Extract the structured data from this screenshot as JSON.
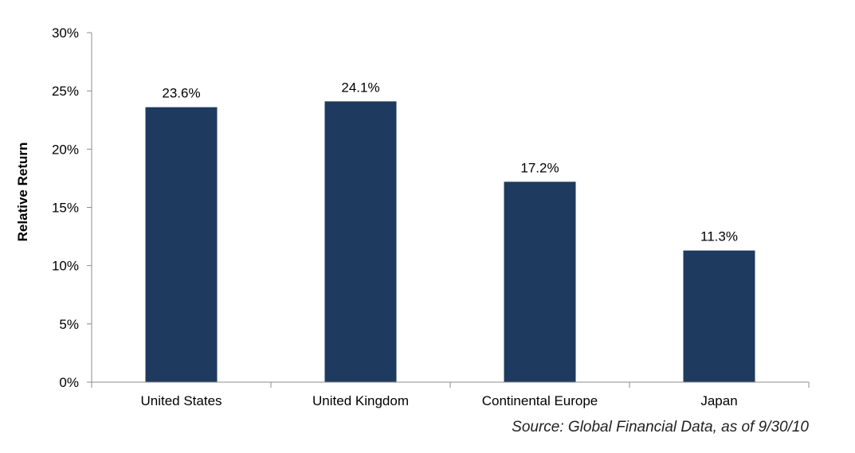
{
  "chart_data": {
    "type": "bar",
    "categories": [
      "United States",
      "United Kingdom",
      "Continental Europe",
      "Japan"
    ],
    "values": [
      23.6,
      24.1,
      17.2,
      11.3
    ],
    "data_labels": [
      "23.6%",
      "24.1%",
      "17.2%",
      "11.3%"
    ],
    "title": "",
    "xlabel": "",
    "ylabel": "Relative Return",
    "ylim": [
      0,
      30
    ],
    "yticks": [
      0,
      5,
      10,
      15,
      20,
      25,
      30
    ],
    "ytick_labels": [
      "0%",
      "5%",
      "10%",
      "15%",
      "20%",
      "25%",
      "30%"
    ],
    "grid": false,
    "legend": "none",
    "bar_color": "#1f3a5f",
    "axis_color": "#8c8c8c"
  },
  "source_note": "Source: Global Financial Data, as of 9/30/10"
}
